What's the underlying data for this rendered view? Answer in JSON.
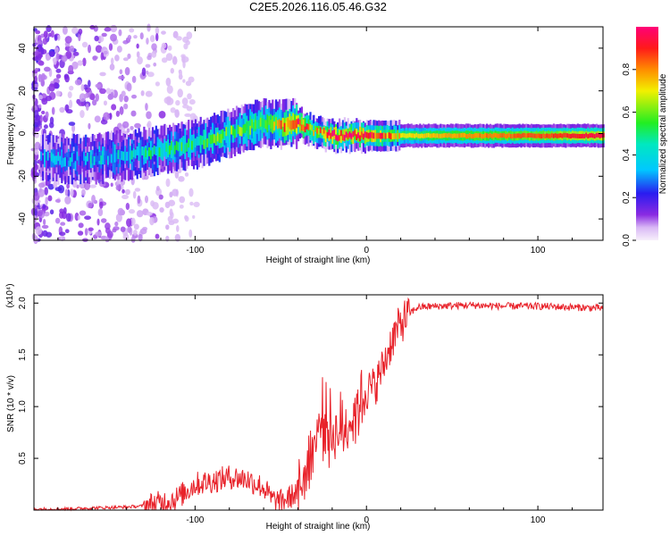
{
  "title": "C2E5.2026.116.05.46.G32",
  "chart_data": [
    {
      "type": "heatmap",
      "name": "spectrogram",
      "xlabel": "Height of straight line (km)",
      "ylabel": "Frequency (Hz)",
      "xlim": [
        -194,
        138
      ],
      "ylim": [
        -50,
        50
      ],
      "xticks": [
        -100,
        0,
        100
      ],
      "xtick_labels": [
        "-100",
        "0",
        "100"
      ],
      "yticks": [
        -40,
        -20,
        0,
        20,
        40
      ],
      "ytick_labels": [
        "-40",
        "-20",
        "0",
        "20",
        "40"
      ],
      "colorbar": {
        "label": "Normalized spectral amplitude",
        "range": [
          0,
          1
        ],
        "ticks": [
          0.0,
          0.2,
          0.4,
          0.6,
          0.8
        ],
        "tick_labels": [
          "0.0",
          "0.2",
          "0.4",
          "0.6",
          "0.8"
        ]
      },
      "ridge": {
        "x": [
          -180,
          -160,
          -140,
          -120,
          -100,
          -80,
          -60,
          -50,
          -40,
          -30,
          -20,
          0,
          20,
          60,
          100,
          138
        ],
        "freq_hz": [
          -12,
          -12,
          -10,
          -8,
          -5,
          0,
          5,
          4,
          5,
          1,
          -1,
          -1,
          -1,
          -1,
          -1,
          -1
        ],
        "peak_amplitude": [
          0.3,
          0.35,
          0.4,
          0.45,
          0.5,
          0.55,
          0.6,
          0.75,
          0.95,
          0.7,
          0.95,
          0.95,
          0.7,
          0.8,
          0.85,
          0.95
        ]
      }
    },
    {
      "type": "line",
      "name": "snr",
      "xlabel": "Height of straight line (km)",
      "ylabel": "SNR (10 * v/v)",
      "yscale_label": "(x10⁴)",
      "xlim": [
        -194,
        138
      ],
      "ylim": [
        0,
        2.08
      ],
      "xticks": [
        -100,
        0,
        100
      ],
      "xtick_labels": [
        "-100",
        "0",
        "100"
      ],
      "yticks": [
        0.5,
        1.0,
        1.5,
        2.0
      ],
      "ytick_labels": [
        "0.5",
        "1.0",
        "1.5",
        "2.0"
      ],
      "color": "#e8222a",
      "series": {
        "name": "SNR",
        "x": [
          -194,
          -180,
          -160,
          -140,
          -130,
          -120,
          -110,
          -100,
          -90,
          -80,
          -70,
          -60,
          -55,
          -50,
          -45,
          -40,
          -35,
          -30,
          -25,
          -20,
          -15,
          -10,
          -5,
          0,
          5,
          10,
          15,
          20,
          25,
          30,
          40,
          60,
          80,
          100,
          120,
          138
        ],
        "y": [
          0.01,
          0.01,
          0.02,
          0.03,
          0.04,
          0.07,
          0.12,
          0.25,
          0.28,
          0.32,
          0.3,
          0.22,
          0.1,
          0.08,
          0.12,
          0.18,
          0.4,
          0.7,
          0.9,
          0.75,
          0.75,
          0.85,
          1.0,
          1.15,
          1.2,
          1.4,
          1.65,
          1.8,
          1.9,
          1.96,
          1.97,
          1.98,
          1.97,
          1.97,
          1.96,
          1.95
        ]
      }
    }
  ]
}
